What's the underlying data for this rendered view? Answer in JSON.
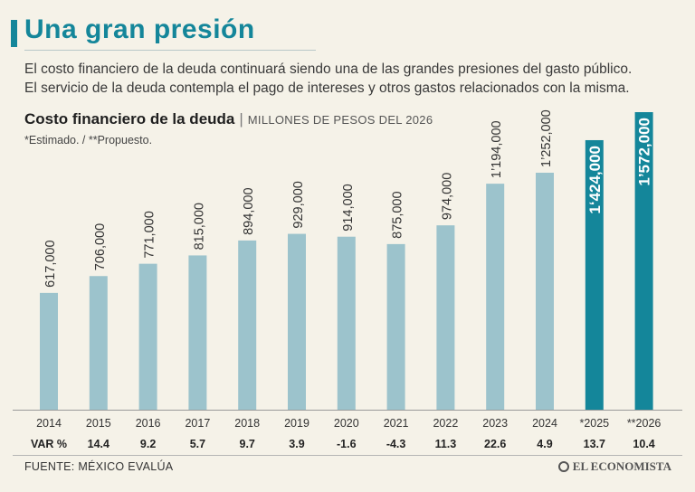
{
  "headline": "Una gran presión",
  "subtitle_lines": [
    "El costo financiero de la deuda continuará siendo una de las grandes presiones del gasto público.",
    "El servicio de la deuda contempla el pago de intereses y otros gastos relacionados con la misma."
  ],
  "chart_title": "Costo financiero de la deuda",
  "chart_separator": "|",
  "chart_units": "MILLONES DE PESOS DEL 2026",
  "chart_note": "*Estimado. / **Propuesto.",
  "var_label": "VAR %",
  "source": "FUENTE: MÉXICO EVALÚA",
  "logo_text": "EL ECONOMISTA",
  "colors": {
    "historical_bar": "#9cc3cc",
    "projected_bar": "#14869a",
    "headline": "#14869a"
  },
  "chart_data": {
    "type": "bar",
    "title": "Costo financiero de la deuda",
    "ylabel": "Millones de pesos del 2026",
    "ylim": [
      0,
      1572000
    ],
    "categories": [
      "2014",
      "2015",
      "2016",
      "2017",
      "2018",
      "2019",
      "2020",
      "2021",
      "2022",
      "2023",
      "2024",
      "*2025",
      "**2026"
    ],
    "values": [
      617000,
      706000,
      771000,
      815000,
      894000,
      929000,
      914000,
      875000,
      974000,
      1194000,
      1252000,
      1424000,
      1572000
    ],
    "value_labels": [
      "617,000",
      "706,000",
      "771,000",
      "815,000",
      "894,000",
      "929,000",
      "914,000",
      "875,000",
      "974,000",
      "1’194,000",
      "1’252,000",
      "1‘424,000",
      "1’572,000"
    ],
    "highlighted": [
      false,
      false,
      false,
      false,
      false,
      false,
      false,
      false,
      false,
      false,
      false,
      true,
      true
    ],
    "var_pct": [
      "14.4",
      "9.2",
      "5.7",
      "9.7",
      "3.9",
      "-1.6",
      "-4.3",
      "11.3",
      "22.6",
      "4.9",
      "13.7",
      "10.4"
    ]
  }
}
